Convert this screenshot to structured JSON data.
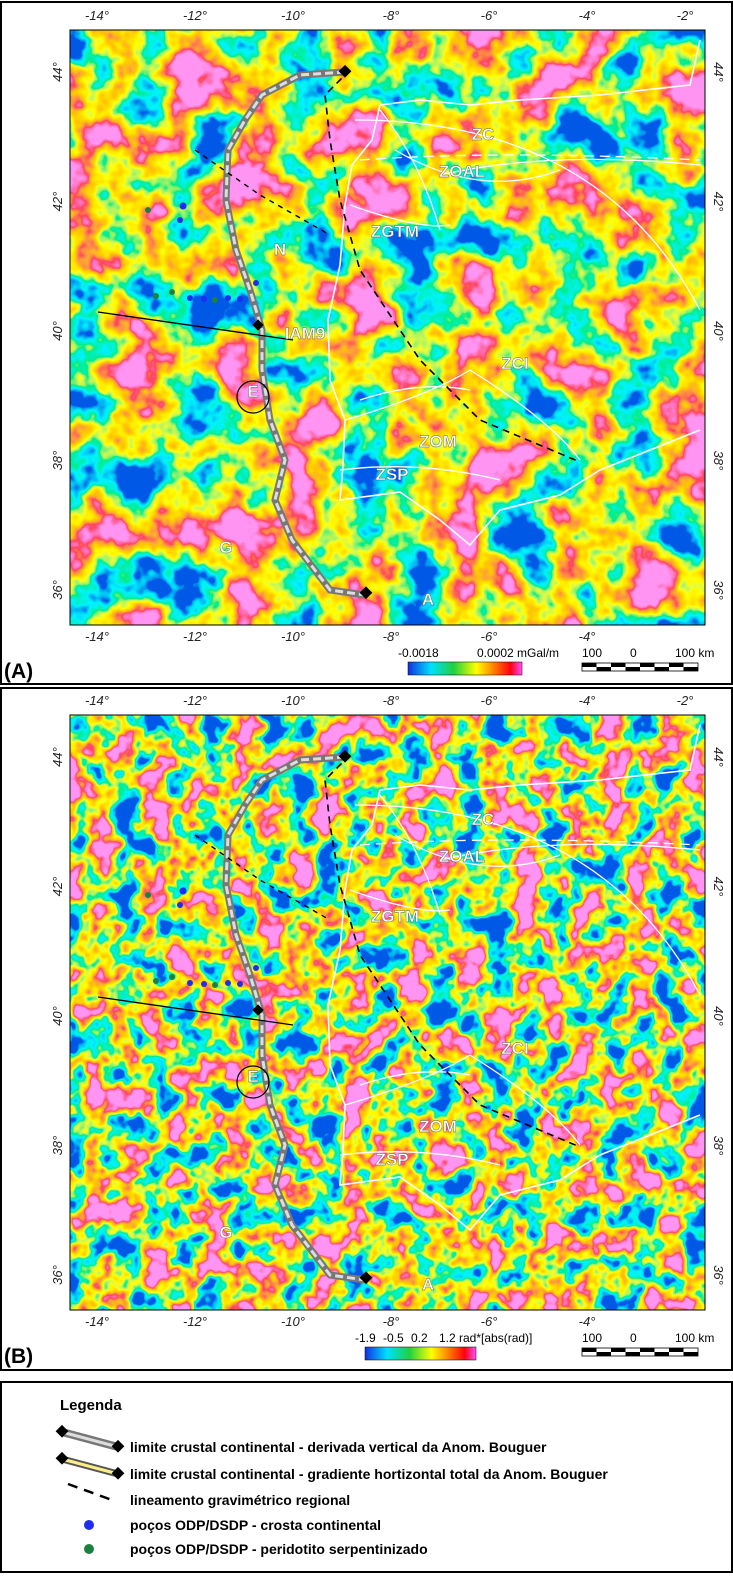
{
  "panels": [
    {
      "label": "(A)",
      "top_ticks": [
        "-14°",
        "-12°",
        "-10°",
        "-8°",
        "-6°",
        "-4°",
        "-2°"
      ],
      "bottom_ticks": [
        "-14°",
        "-12°",
        "-10°",
        "-8°",
        "-6°",
        "-4°"
      ],
      "left_ticks": [
        "44°",
        "42°",
        "40°",
        "38°",
        "36°"
      ],
      "right_ticks": [
        "44°",
        "42°",
        "40°",
        "38°",
        "36°"
      ],
      "annotations": [
        "ZC",
        "ZOAL",
        "ZGTM",
        "ZCI",
        "ZOM",
        "ZSP",
        "N",
        "E",
        "G",
        "A",
        "IAM9"
      ],
      "colorbar": [
        "-0.0018",
        "0.0002 mGal/m"
      ],
      "scale": [
        "100",
        "0",
        "100 km"
      ]
    },
    {
      "label": "(B)",
      "top_ticks": [
        "-14°",
        "-12°",
        "-10°",
        "-8°",
        "-6°",
        "-4°",
        "-2°"
      ],
      "bottom_ticks": [
        "-14°",
        "-12°",
        "-10°",
        "-8°",
        "-6°",
        "-4°"
      ],
      "left_ticks": [
        "44°",
        "42°",
        "40°",
        "38°",
        "36°"
      ],
      "right_ticks": [
        "44°",
        "42°",
        "40°",
        "38°",
        "36°"
      ],
      "annotations": [
        "ZC",
        "ZOAL",
        "ZGTM",
        "ZCI",
        "ZOM",
        "ZSP",
        "E",
        "G",
        "A"
      ],
      "colorbar": [
        "-1.9",
        "-0.5",
        "0.2",
        "1.2 rad*[abs(rad)]"
      ],
      "scale": [
        "100",
        "0",
        "100 km"
      ]
    }
  ],
  "legend": {
    "title": "Legenda",
    "items": [
      "limite crustal continental - derivada vertical da Anom. Bouguer",
      "limite crustal continental - gradiente hortizontal total da Anom. Bouguer",
      "lineamento gravimétrico regional",
      "poços ODP/DSDP - crosta continental",
      "poços ODP/DSDP - peridotito serpentinizado"
    ]
  }
}
